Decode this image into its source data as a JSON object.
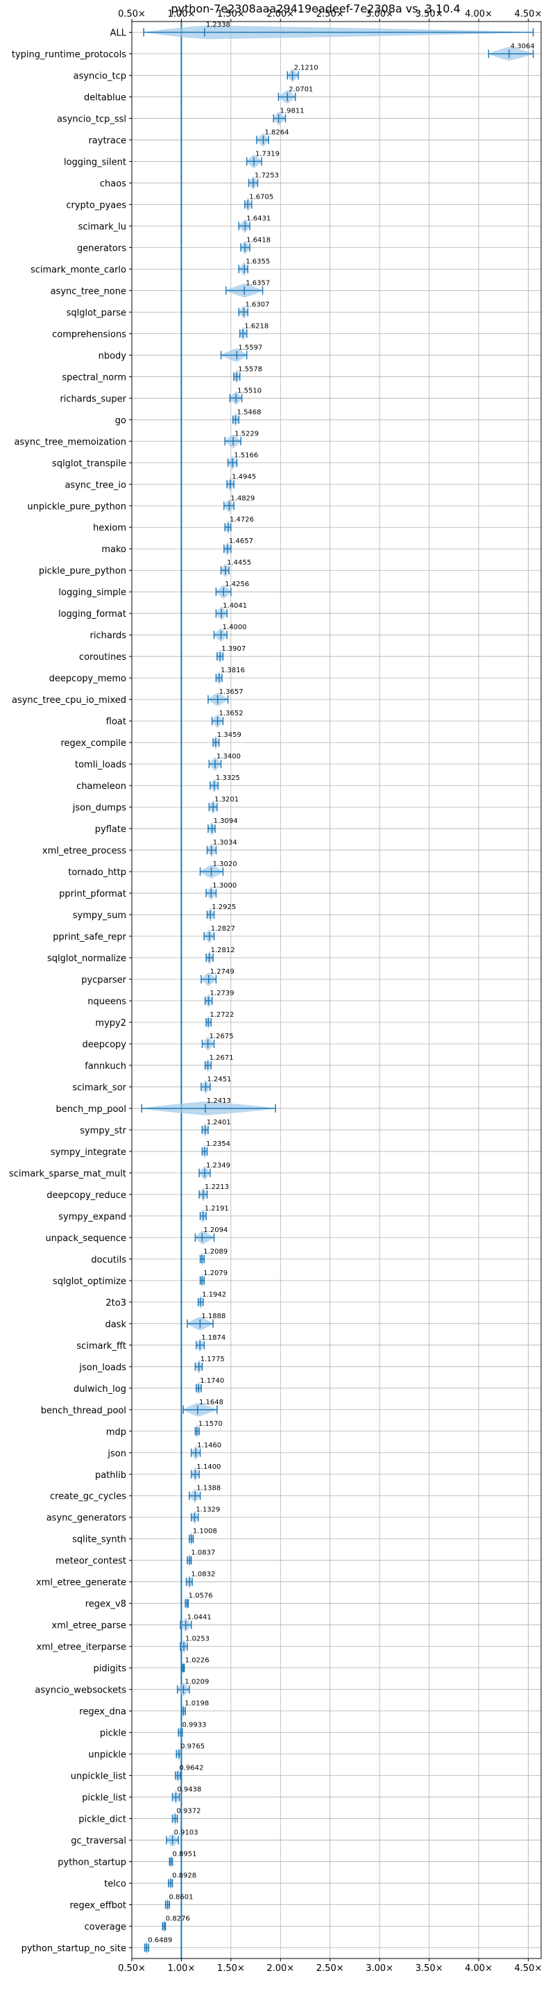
{
  "chart_data": {
    "type": "violin",
    "title": "python-7e2308aaa29419eadeef-7e2308a vs. 3.10.4",
    "xlabel": "",
    "ylabel": "",
    "xlim": [
      0.5,
      4.63
    ],
    "x_ticks": [
      {
        "value": 0.5,
        "label": "0.50×"
      },
      {
        "value": 1.0,
        "label": "1.00×"
      },
      {
        "value": 1.5,
        "label": "1.50×"
      },
      {
        "value": 2.0,
        "label": "2.00×"
      },
      {
        "value": 2.5,
        "label": "2.50×"
      },
      {
        "value": 3.0,
        "label": "3.00×"
      },
      {
        "value": 3.5,
        "label": "3.50×"
      },
      {
        "value": 4.0,
        "label": "4.00×"
      },
      {
        "value": 4.5,
        "label": "4.50×"
      }
    ],
    "reference_line": 1.0,
    "grid": true,
    "colors": {
      "body": "#9ec8e8",
      "line": "#1f77b4",
      "reference": "#1f77b4",
      "grid": "#b0b0b0"
    },
    "benchmarks": [
      {
        "name": "ALL",
        "value": 1.2338,
        "min": 0.62,
        "max": 4.55
      },
      {
        "name": "typing_runtime_protocols",
        "value": 4.3064,
        "min": 4.1,
        "max": 4.55
      },
      {
        "name": "asyncio_tcp",
        "value": 2.121,
        "min": 2.07,
        "max": 2.18
      },
      {
        "name": "deltablue",
        "value": 2.0701,
        "min": 1.98,
        "max": 2.15
      },
      {
        "name": "asyncio_tcp_ssl",
        "value": 1.9811,
        "min": 1.93,
        "max": 2.05
      },
      {
        "name": "raytrace",
        "value": 1.8264,
        "min": 1.76,
        "max": 1.88
      },
      {
        "name": "logging_silent",
        "value": 1.7319,
        "min": 1.66,
        "max": 1.81
      },
      {
        "name": "chaos",
        "value": 1.7253,
        "min": 1.68,
        "max": 1.77
      },
      {
        "name": "crypto_pyaes",
        "value": 1.6705,
        "min": 1.64,
        "max": 1.71
      },
      {
        "name": "scimark_lu",
        "value": 1.6431,
        "min": 1.58,
        "max": 1.69
      },
      {
        "name": "generators",
        "value": 1.6418,
        "min": 1.6,
        "max": 1.69
      },
      {
        "name": "scimark_monte_carlo",
        "value": 1.6355,
        "min": 1.58,
        "max": 1.67
      },
      {
        "name": "async_tree_none",
        "value": 1.6357,
        "min": 1.45,
        "max": 1.82
      },
      {
        "name": "sqlglot_parse",
        "value": 1.6307,
        "min": 1.58,
        "max": 1.67
      },
      {
        "name": "comprehensions",
        "value": 1.6218,
        "min": 1.59,
        "max": 1.66
      },
      {
        "name": "nbody",
        "value": 1.5597,
        "min": 1.4,
        "max": 1.66
      },
      {
        "name": "spectral_norm",
        "value": 1.5578,
        "min": 1.53,
        "max": 1.59
      },
      {
        "name": "richards_super",
        "value": 1.551,
        "min": 1.49,
        "max": 1.61
      },
      {
        "name": "go",
        "value": 1.5468,
        "min": 1.52,
        "max": 1.58
      },
      {
        "name": "async_tree_memoization",
        "value": 1.5229,
        "min": 1.44,
        "max": 1.6
      },
      {
        "name": "sqlglot_transpile",
        "value": 1.5166,
        "min": 1.47,
        "max": 1.56
      },
      {
        "name": "async_tree_io",
        "value": 1.4945,
        "min": 1.46,
        "max": 1.53
      },
      {
        "name": "unpickle_pure_python",
        "value": 1.4829,
        "min": 1.43,
        "max": 1.53
      },
      {
        "name": "hexiom",
        "value": 1.4726,
        "min": 1.44,
        "max": 1.5
      },
      {
        "name": "mako",
        "value": 1.4657,
        "min": 1.43,
        "max": 1.5
      },
      {
        "name": "pickle_pure_python",
        "value": 1.4455,
        "min": 1.4,
        "max": 1.48
      },
      {
        "name": "logging_simple",
        "value": 1.4256,
        "min": 1.35,
        "max": 1.5
      },
      {
        "name": "logging_format",
        "value": 1.4041,
        "min": 1.35,
        "max": 1.46
      },
      {
        "name": "richards",
        "value": 1.4,
        "min": 1.33,
        "max": 1.46
      },
      {
        "name": "coroutines",
        "value": 1.3907,
        "min": 1.36,
        "max": 1.42
      },
      {
        "name": "deepcopy_memo",
        "value": 1.3816,
        "min": 1.35,
        "max": 1.41
      },
      {
        "name": "async_tree_cpu_io_mixed",
        "value": 1.3657,
        "min": 1.27,
        "max": 1.47
      },
      {
        "name": "float",
        "value": 1.3652,
        "min": 1.31,
        "max": 1.42
      },
      {
        "name": "regex_compile",
        "value": 1.3459,
        "min": 1.32,
        "max": 1.38
      },
      {
        "name": "tomli_loads",
        "value": 1.34,
        "min": 1.28,
        "max": 1.4
      },
      {
        "name": "chameleon",
        "value": 1.3325,
        "min": 1.29,
        "max": 1.37
      },
      {
        "name": "json_dumps",
        "value": 1.3201,
        "min": 1.28,
        "max": 1.36
      },
      {
        "name": "pyflate",
        "value": 1.3094,
        "min": 1.27,
        "max": 1.34
      },
      {
        "name": "xml_etree_process",
        "value": 1.3034,
        "min": 1.26,
        "max": 1.35
      },
      {
        "name": "tornado_http",
        "value": 1.302,
        "min": 1.19,
        "max": 1.42
      },
      {
        "name": "pprint_pformat",
        "value": 1.3,
        "min": 1.25,
        "max": 1.35
      },
      {
        "name": "sympy_sum",
        "value": 1.2925,
        "min": 1.26,
        "max": 1.33
      },
      {
        "name": "pprint_safe_repr",
        "value": 1.2827,
        "min": 1.23,
        "max": 1.33
      },
      {
        "name": "sqlglot_normalize",
        "value": 1.2812,
        "min": 1.25,
        "max": 1.32
      },
      {
        "name": "pycparser",
        "value": 1.2749,
        "min": 1.2,
        "max": 1.35
      },
      {
        "name": "nqueens",
        "value": 1.2739,
        "min": 1.24,
        "max": 1.31
      },
      {
        "name": "mypy2",
        "value": 1.2722,
        "min": 1.25,
        "max": 1.3
      },
      {
        "name": "deepcopy",
        "value": 1.2675,
        "min": 1.21,
        "max": 1.33
      },
      {
        "name": "fannkuch",
        "value": 1.2671,
        "min": 1.24,
        "max": 1.3
      },
      {
        "name": "scimark_sor",
        "value": 1.2451,
        "min": 1.2,
        "max": 1.29
      },
      {
        "name": "bench_mp_pool",
        "value": 1.2413,
        "min": 0.6,
        "max": 1.95
      },
      {
        "name": "sympy_str",
        "value": 1.2401,
        "min": 1.21,
        "max": 1.27
      },
      {
        "name": "sympy_integrate",
        "value": 1.2354,
        "min": 1.21,
        "max": 1.26
      },
      {
        "name": "scimark_sparse_mat_mult",
        "value": 1.2349,
        "min": 1.18,
        "max": 1.29
      },
      {
        "name": "deepcopy_reduce",
        "value": 1.2213,
        "min": 1.18,
        "max": 1.26
      },
      {
        "name": "sympy_expand",
        "value": 1.2191,
        "min": 1.19,
        "max": 1.25
      },
      {
        "name": "unpack_sequence",
        "value": 1.2094,
        "min": 1.14,
        "max": 1.33
      },
      {
        "name": "docutils",
        "value": 1.2089,
        "min": 1.19,
        "max": 1.23
      },
      {
        "name": "sqlglot_optimize",
        "value": 1.2079,
        "min": 1.19,
        "max": 1.23
      },
      {
        "name": "2to3",
        "value": 1.1942,
        "min": 1.17,
        "max": 1.22
      },
      {
        "name": "dask",
        "value": 1.1888,
        "min": 1.06,
        "max": 1.32
      },
      {
        "name": "scimark_fft",
        "value": 1.1874,
        "min": 1.15,
        "max": 1.23
      },
      {
        "name": "json_loads",
        "value": 1.1775,
        "min": 1.14,
        "max": 1.21
      },
      {
        "name": "dulwich_log",
        "value": 1.174,
        "min": 1.15,
        "max": 1.2
      },
      {
        "name": "bench_thread_pool",
        "value": 1.1648,
        "min": 1.02,
        "max": 1.36
      },
      {
        "name": "mdp",
        "value": 1.157,
        "min": 1.14,
        "max": 1.18
      },
      {
        "name": "json",
        "value": 1.146,
        "min": 1.1,
        "max": 1.19
      },
      {
        "name": "pathlib",
        "value": 1.14,
        "min": 1.1,
        "max": 1.18
      },
      {
        "name": "create_gc_cycles",
        "value": 1.1388,
        "min": 1.08,
        "max": 1.19
      },
      {
        "name": "async_generators",
        "value": 1.1329,
        "min": 1.1,
        "max": 1.17
      },
      {
        "name": "sqlite_synth",
        "value": 1.1008,
        "min": 1.08,
        "max": 1.12
      },
      {
        "name": "meteor_contest",
        "value": 1.0837,
        "min": 1.06,
        "max": 1.1
      },
      {
        "name": "xml_etree_generate",
        "value": 1.0832,
        "min": 1.05,
        "max": 1.11
      },
      {
        "name": "regex_v8",
        "value": 1.0576,
        "min": 1.04,
        "max": 1.07
      },
      {
        "name": "xml_etree_parse",
        "value": 1.0441,
        "min": 0.99,
        "max": 1.1
      },
      {
        "name": "xml_etree_iterparse",
        "value": 1.0253,
        "min": 0.99,
        "max": 1.06
      },
      {
        "name": "pidigits",
        "value": 1.0226,
        "min": 1.01,
        "max": 1.03
      },
      {
        "name": "asyncio_websockets",
        "value": 1.0209,
        "min": 0.96,
        "max": 1.08
      },
      {
        "name": "regex_dna",
        "value": 1.0198,
        "min": 1.0,
        "max": 1.04
      },
      {
        "name": "pickle",
        "value": 0.9933,
        "min": 0.97,
        "max": 1.01
      },
      {
        "name": "unpickle",
        "value": 0.9765,
        "min": 0.95,
        "max": 1.0
      },
      {
        "name": "unpickle_list",
        "value": 0.9642,
        "min": 0.94,
        "max": 0.99
      },
      {
        "name": "pickle_list",
        "value": 0.9438,
        "min": 0.91,
        "max": 0.98
      },
      {
        "name": "pickle_dict",
        "value": 0.9372,
        "min": 0.91,
        "max": 0.96
      },
      {
        "name": "gc_traversal",
        "value": 0.9103,
        "min": 0.85,
        "max": 0.97
      },
      {
        "name": "python_startup",
        "value": 0.8951,
        "min": 0.88,
        "max": 0.91
      },
      {
        "name": "telco",
        "value": 0.8928,
        "min": 0.87,
        "max": 0.91
      },
      {
        "name": "regex_effbot",
        "value": 0.8601,
        "min": 0.84,
        "max": 0.88
      },
      {
        "name": "coverage",
        "value": 0.8276,
        "min": 0.81,
        "max": 0.84
      },
      {
        "name": "python_startup_no_site",
        "value": 0.6489,
        "min": 0.63,
        "max": 0.67
      }
    ]
  }
}
